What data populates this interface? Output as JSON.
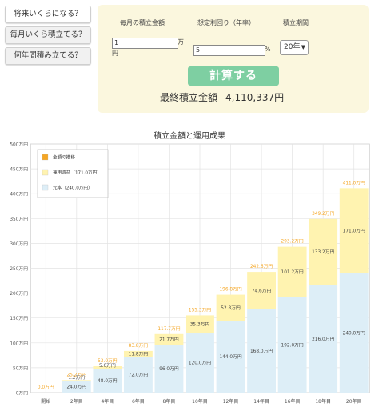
{
  "tabs": [
    {
      "label": "将来いくらになる？"
    },
    {
      "label": "毎月いくら積立てる？"
    },
    {
      "label": "何年間積み立てる？"
    }
  ],
  "form": {
    "monthly_label": "毎月の積立金額",
    "rate_label": "想定利回り（年率）",
    "period_label": "積立期間",
    "monthly_value": "1",
    "monthly_unit_line1": "万",
    "monthly_unit_line2": "円",
    "rate_value": "5",
    "rate_unit": "%",
    "period_value": "20年",
    "calc_label": "計算する",
    "result_label": "最終積立金額",
    "result_value": "4,110,337円"
  },
  "colors": {
    "principal": "#ddeef7",
    "gain": "#fff3b0",
    "total_line": "#f5a623",
    "panel": "#fbf7de",
    "button": "#7ecfa2"
  },
  "chart_data": {
    "type": "bar",
    "title": "積立金額と運用成果",
    "categories": [
      "開始",
      "2年目",
      "4年目",
      "6年目",
      "8年目",
      "10年目",
      "12年目",
      "14年目",
      "16年目",
      "18年目",
      "20年目"
    ],
    "ylim": [
      0,
      500
    ],
    "yticks": [
      "0万円",
      "50万円",
      "100万円",
      "150万円",
      "200万円",
      "250万円",
      "300万円",
      "350万円",
      "400万円",
      "450万円",
      "500万円"
    ],
    "legend": [
      {
        "name": "金額の推移",
        "color": "#f5a623"
      },
      {
        "name": "運用収益（171.0万円）",
        "color": "#fff3b0"
      },
      {
        "name": "元本（240.0万円）",
        "color": "#ddeef7"
      }
    ],
    "series": [
      {
        "name": "元本",
        "values": [
          0,
          24.0,
          48.0,
          72.0,
          96.0,
          120.0,
          144.0,
          168.0,
          192.0,
          216.0,
          240.0
        ],
        "labels": [
          "",
          "24.0万円",
          "48.0万円",
          "72.0万円",
          "96.0万円",
          "120.0万円",
          "144.0万円",
          "168.0万円",
          "192.0万円",
          "216.0万円",
          "240.0万円"
        ]
      },
      {
        "name": "運用収益",
        "values": [
          0,
          1.2,
          5.0,
          11.8,
          21.7,
          35.3,
          52.8,
          74.6,
          101.2,
          133.2,
          171.0
        ],
        "labels": [
          "",
          "1.2万円",
          "5.0万円",
          "11.8万円",
          "21.7万円",
          "35.3万円",
          "52.8万円",
          "74.6万円",
          "101.2万円",
          "133.2万円",
          "171.0万円"
        ]
      }
    ],
    "totals": [
      0,
      25.2,
      53.0,
      83.8,
      117.7,
      155.3,
      196.8,
      242.6,
      293.2,
      349.2,
      411.0
    ],
    "total_labels": [
      "0.0万円",
      "25.2万円",
      "53.0万円",
      "83.8万円",
      "117.7万円",
      "155.3万円",
      "196.8万円",
      "242.6万円",
      "293.2万円",
      "349.2万円",
      "411.0万円"
    ]
  }
}
